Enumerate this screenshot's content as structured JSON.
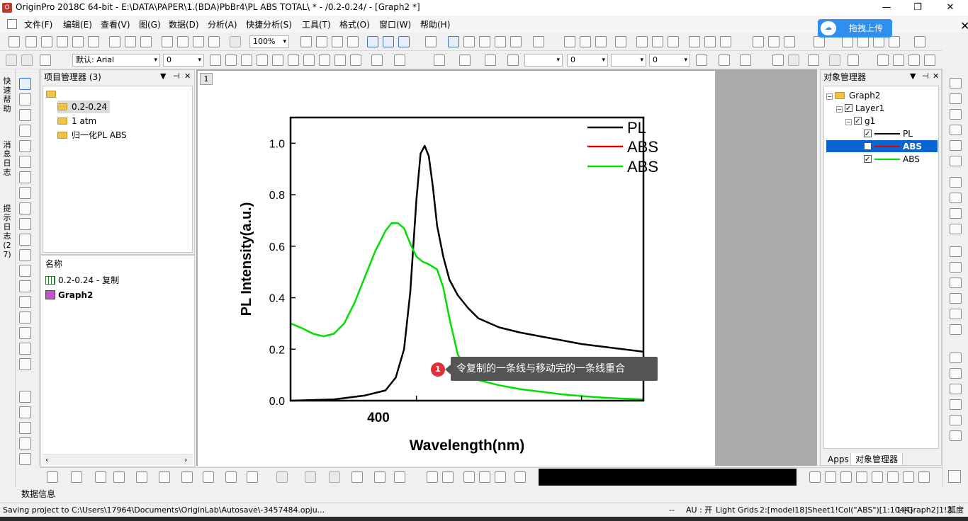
{
  "titlebar": {
    "title": "OriginPro 2018C 64-bit - E:\\DATA\\PAPER\\1.(BDA)PbBr4\\PL ABS TOTAL\\ * - /0.2-0.24/ - [Graph2 *]",
    "minimize": "—",
    "restore": "❐",
    "close": "✕"
  },
  "menu": [
    "文件(F)",
    "编辑(E)",
    "查看(V)",
    "图(G)",
    "数据(D)",
    "分析(A)",
    "快捷分析(S)",
    "工具(T)",
    "格式(O)",
    "窗口(W)",
    "帮助(H)"
  ],
  "toolbar": {
    "zoom": "100%",
    "font": "默认: Arial",
    "fontsize": "0",
    "linewidth": "0",
    "linewidth2": "0"
  },
  "cloud": {
    "label": "拖拽上传",
    "close": "✕"
  },
  "left_tabs": [
    "快速帮助",
    "消息日志",
    "提示日志 (27)"
  ],
  "project_manager": {
    "title": "项目管理器 (3)",
    "ctl_menu": "▼",
    "ctl_pin": "⊣",
    "ctl_close": "✕",
    "folders": [
      "0.2-0.24",
      "1 atm",
      "归一化PL ABS"
    ],
    "list_header": "名称",
    "items": [
      "0.2-0.24 - 复制",
      "Graph2"
    ]
  },
  "graph": {
    "window_number": "1",
    "ylabel": "PL Intensity(a.u.)",
    "xlabel": "Wavelength(nm)",
    "x_tick": "400",
    "y_ticks": [
      "0.0",
      "0.2",
      "0.4",
      "0.6",
      "0.8",
      "1.0"
    ],
    "legend": [
      "PL",
      "ABS",
      "ABS"
    ]
  },
  "chart_data": {
    "type": "line",
    "xlabel": "Wavelength(nm)",
    "ylabel": "PL Intensity(a.u.)",
    "xlim": [
      339,
      510
    ],
    "ylim": [
      0,
      1.1
    ],
    "legend_position": "top-right",
    "series": [
      {
        "name": "PL",
        "color": "#000000",
        "x": [
          339,
          360,
          375,
          385,
          390,
          394,
          397,
          400,
          402,
          404,
          406,
          408,
          410,
          413,
          416,
          420,
          425,
          430,
          440,
          450,
          460,
          470,
          480,
          490,
          500,
          510
        ],
        "y": [
          0.0,
          0.005,
          0.02,
          0.04,
          0.09,
          0.2,
          0.42,
          0.78,
          0.96,
          0.99,
          0.95,
          0.83,
          0.68,
          0.56,
          0.47,
          0.41,
          0.36,
          0.32,
          0.285,
          0.265,
          0.25,
          0.235,
          0.22,
          0.21,
          0.2,
          0.19
        ]
      },
      {
        "name": "ABS",
        "color": "#e00000",
        "x": [],
        "y": []
      },
      {
        "name": "ABS",
        "color": "#00e000",
        "x": [
          339,
          345,
          350,
          355,
          360,
          365,
          370,
          375,
          380,
          385,
          388,
          391,
          394,
          397,
          400,
          403,
          406,
          410,
          413,
          416,
          420,
          425,
          430,
          440,
          450,
          460,
          470,
          480,
          490,
          500,
          510
        ],
        "y": [
          0.3,
          0.28,
          0.26,
          0.25,
          0.26,
          0.3,
          0.38,
          0.48,
          0.58,
          0.66,
          0.69,
          0.69,
          0.67,
          0.61,
          0.56,
          0.54,
          0.53,
          0.51,
          0.44,
          0.32,
          0.18,
          0.11,
          0.08,
          0.06,
          0.045,
          0.035,
          0.025,
          0.018,
          0.012,
          0.008,
          0.005
        ]
      }
    ]
  },
  "tooltip": {
    "number": "1",
    "text": "令复制的一条线与移动完的一条线重合"
  },
  "object_manager": {
    "title": "对象管理器",
    "ctl_menu": "▼",
    "ctl_pin": "⊣",
    "ctl_close": "✕",
    "graph": "Graph2",
    "layer": "Layer1",
    "group": "g1",
    "plots": [
      "PL",
      "ABS",
      "ABS"
    ],
    "tab_apps": "Apps",
    "tab_om": "对象管理器"
  },
  "bottom": {
    "datainfo": "数据信息"
  },
  "status": {
    "saving": "Saving project  to C:\\Users\\17964\\Documents\\OriginLab\\Autosave\\-3457484.opju...",
    "dash": "--",
    "au": "AU : 开",
    "grids": "Light Grids",
    "col": "2:[model18]Sheet1!Col(\"ABS\")[1:1044]",
    "graph": "1:[Graph2]1!2",
    "unit": "弧度"
  },
  "colors": {
    "accent": "#0a64d2",
    "cloud": "#2e8fef",
    "pl": "#000000",
    "abs_red": "#e00000",
    "abs_green": "#00e000"
  }
}
